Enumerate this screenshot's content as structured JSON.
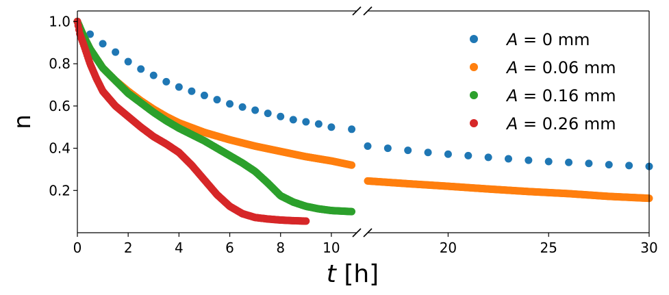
{
  "chart_data": {
    "type": "scatter",
    "title": "",
    "xlabel_var": "t",
    "xlabel_unit": "[h]",
    "ylabel": "n",
    "broken_x_axis": true,
    "x_segments": [
      {
        "xlim": [
          0,
          11
        ],
        "xticks": [
          0,
          2,
          4,
          6,
          8,
          10
        ]
      },
      {
        "xlim": [
          16,
          30
        ],
        "xticks": [
          20,
          25,
          30
        ]
      }
    ],
    "ylim": [
      0,
      1.05
    ],
    "yticks": [
      0.2,
      0.4,
      0.6,
      0.8,
      1.0
    ],
    "ytick_labels": [
      "0.2",
      "0.4",
      "0.6",
      "0.8",
      "1.0"
    ],
    "xtick_labels": [
      "0",
      "2",
      "4",
      "6",
      "8",
      "10",
      "20",
      "25",
      "30"
    ],
    "grid": false,
    "legend_position": "top-right",
    "series": [
      {
        "name_var": "A",
        "name_rest": " = 0 mm",
        "color": "#1f77b4",
        "marker": "sparse-dots",
        "points": [
          [
            0,
            1.0
          ],
          [
            0.5,
            0.94
          ],
          [
            1.0,
            0.895
          ],
          [
            1.5,
            0.855
          ],
          [
            2.0,
            0.81
          ],
          [
            2.5,
            0.775
          ],
          [
            3.0,
            0.745
          ],
          [
            3.5,
            0.715
          ],
          [
            4.0,
            0.69
          ],
          [
            4.5,
            0.67
          ],
          [
            5.0,
            0.65
          ],
          [
            5.5,
            0.63
          ],
          [
            6.0,
            0.61
          ],
          [
            6.5,
            0.595
          ],
          [
            7.0,
            0.58
          ],
          [
            7.5,
            0.565
          ],
          [
            8.0,
            0.55
          ],
          [
            8.5,
            0.535
          ],
          [
            9.0,
            0.525
          ],
          [
            9.5,
            0.515
          ],
          [
            10.0,
            0.5
          ],
          [
            10.8,
            0.49
          ],
          [
            16.0,
            0.41
          ],
          [
            17.0,
            0.4
          ],
          [
            18.0,
            0.39
          ],
          [
            19.0,
            0.38
          ],
          [
            20.0,
            0.372
          ],
          [
            21.0,
            0.365
          ],
          [
            22.0,
            0.357
          ],
          [
            23.0,
            0.35
          ],
          [
            24.0,
            0.343
          ],
          [
            25.0,
            0.337
          ],
          [
            26.0,
            0.333
          ],
          [
            27.0,
            0.328
          ],
          [
            28.0,
            0.322
          ],
          [
            29.0,
            0.318
          ],
          [
            30.0,
            0.314
          ]
        ]
      },
      {
        "name_var": "A",
        "name_rest": " = 0.06 mm",
        "color": "#ff7f0e",
        "marker": "dense-line",
        "points": [
          [
            0,
            1.0
          ],
          [
            0.25,
            0.93
          ],
          [
            0.5,
            0.87
          ],
          [
            1.0,
            0.78
          ],
          [
            1.5,
            0.72
          ],
          [
            2.0,
            0.67
          ],
          [
            2.5,
            0.625
          ],
          [
            3.0,
            0.585
          ],
          [
            3.5,
            0.55
          ],
          [
            4.0,
            0.52
          ],
          [
            5.0,
            0.475
          ],
          [
            6.0,
            0.44
          ],
          [
            7.0,
            0.41
          ],
          [
            8.0,
            0.385
          ],
          [
            9.0,
            0.36
          ],
          [
            10.0,
            0.34
          ],
          [
            10.8,
            0.32
          ],
          [
            16.0,
            0.245
          ],
          [
            18.0,
            0.232
          ],
          [
            20.0,
            0.22
          ],
          [
            22.0,
            0.207
          ],
          [
            24.0,
            0.195
          ],
          [
            26.0,
            0.185
          ],
          [
            28.0,
            0.172
          ],
          [
            30.0,
            0.163
          ]
        ]
      },
      {
        "name_var": "A",
        "name_rest": " = 0.16 mm",
        "color": "#2ca02c",
        "marker": "dense-line",
        "points": [
          [
            0,
            1.0
          ],
          [
            0.25,
            0.93
          ],
          [
            0.5,
            0.87
          ],
          [
            1.0,
            0.78
          ],
          [
            1.5,
            0.72
          ],
          [
            2.0,
            0.66
          ],
          [
            2.5,
            0.615
          ],
          [
            3.0,
            0.57
          ],
          [
            3.5,
            0.53
          ],
          [
            4.0,
            0.495
          ],
          [
            4.5,
            0.465
          ],
          [
            5.0,
            0.435
          ],
          [
            5.5,
            0.4
          ],
          [
            6.0,
            0.365
          ],
          [
            6.5,
            0.33
          ],
          [
            7.0,
            0.29
          ],
          [
            7.5,
            0.235
          ],
          [
            8.0,
            0.175
          ],
          [
            8.5,
            0.145
          ],
          [
            9.0,
            0.125
          ],
          [
            9.5,
            0.113
          ],
          [
            10.0,
            0.105
          ],
          [
            10.8,
            0.1
          ]
        ]
      },
      {
        "name_var": "A",
        "name_rest": " = 0.26 mm",
        "color": "#d62728",
        "marker": "dense-line",
        "points": [
          [
            0,
            1.0
          ],
          [
            0.1,
            0.94
          ],
          [
            0.25,
            0.89
          ],
          [
            0.5,
            0.8
          ],
          [
            0.75,
            0.73
          ],
          [
            1.0,
            0.67
          ],
          [
            1.5,
            0.6
          ],
          [
            2.0,
            0.55
          ],
          [
            2.5,
            0.5
          ],
          [
            3.0,
            0.455
          ],
          [
            3.5,
            0.42
          ],
          [
            4.0,
            0.38
          ],
          [
            4.5,
            0.32
          ],
          [
            5.0,
            0.25
          ],
          [
            5.5,
            0.18
          ],
          [
            6.0,
            0.125
          ],
          [
            6.5,
            0.09
          ],
          [
            7.0,
            0.072
          ],
          [
            7.5,
            0.065
          ],
          [
            8.0,
            0.06
          ],
          [
            8.5,
            0.057
          ],
          [
            9.0,
            0.055
          ]
        ]
      }
    ]
  }
}
